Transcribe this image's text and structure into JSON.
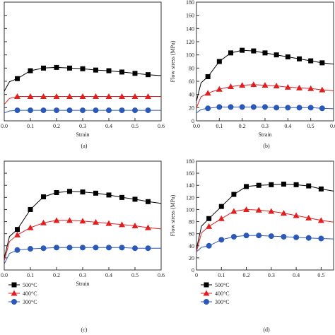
{
  "chart_data": [
    {
      "panel": "(a)",
      "type": "line",
      "xlabel": "Strain",
      "ylabel": "",
      "xlim": [
        0,
        0.6
      ],
      "ylim": [
        0,
        180
      ],
      "xticks": [
        "0.0",
        "0.1",
        "0.2",
        "0.3",
        "0.4",
        "0.5",
        "0.6"
      ],
      "yticks": [],
      "x": [
        0.05,
        0.1,
        0.15,
        0.2,
        0.25,
        0.3,
        0.35,
        0.4,
        0.45,
        0.5,
        0.55
      ],
      "series": [
        {
          "name": "500°C",
          "color": "#000000",
          "marker": "square",
          "start": 45,
          "values": [
            64,
            76,
            80,
            81,
            80,
            79,
            77,
            76,
            74,
            72,
            70
          ]
        },
        {
          "name": "400°C",
          "color": "#e02020",
          "marker": "triangle",
          "start": 25,
          "values": [
            37,
            37,
            37,
            37,
            37,
            37,
            37,
            37,
            37,
            37,
            37
          ]
        },
        {
          "name": "300°C",
          "color": "#2c59b8",
          "marker": "circle",
          "start": 12,
          "values": [
            16,
            16,
            16,
            16,
            16,
            16,
            16,
            16,
            16,
            16,
            16
          ]
        }
      ]
    },
    {
      "panel": "(b)",
      "type": "line",
      "xlabel": "Strain",
      "ylabel": "Flow stress (MPa)",
      "xlim": [
        0,
        0.6
      ],
      "ylim": [
        0,
        180
      ],
      "xticks": [
        "0.0",
        "0.1",
        "0.2",
        "0.3",
        "0.4",
        "0.5",
        "0.6"
      ],
      "yticks": [
        "0",
        "20",
        "40",
        "60",
        "80",
        "100",
        "120",
        "140",
        "160",
        "180"
      ],
      "x": [
        0.05,
        0.1,
        0.15,
        0.2,
        0.25,
        0.3,
        0.35,
        0.4,
        0.45,
        0.5,
        0.55
      ],
      "series": [
        {
          "name": "500°C",
          "color": "#000000",
          "marker": "square",
          "start": 30,
          "values": [
            67,
            90,
            103,
            107,
            106,
            103,
            100,
            97,
            94,
            91,
            88
          ]
        },
        {
          "name": "400°C",
          "color": "#e02020",
          "marker": "triangle",
          "start": 20,
          "values": [
            42,
            48,
            52,
            54,
            55,
            54,
            53,
            51,
            50,
            49,
            47
          ]
        },
        {
          "name": "300°C",
          "color": "#2c59b8",
          "marker": "circle",
          "start": 12,
          "values": [
            19,
            21,
            21,
            21,
            21,
            21,
            20,
            20,
            20,
            20,
            19
          ]
        }
      ]
    },
    {
      "panel": "(c)",
      "type": "line",
      "xlabel": "Strain",
      "ylabel": "",
      "xlim": [
        0,
        0.6
      ],
      "ylim": [
        0,
        180
      ],
      "xticks": [
        "0.0",
        "0.1",
        "0.2",
        "0.3",
        "0.4",
        "0.5",
        "0.6"
      ],
      "yticks": [],
      "x": [
        0.05,
        0.1,
        0.15,
        0.2,
        0.25,
        0.3,
        0.35,
        0.4,
        0.45,
        0.5,
        0.55
      ],
      "series": [
        {
          "name": "500°C",
          "color": "#000000",
          "marker": "square",
          "start": 20,
          "values": [
            67,
            100,
            121,
            128,
            130,
            129,
            127,
            124,
            120,
            117,
            113
          ]
        },
        {
          "name": "400°C",
          "color": "#e02020",
          "marker": "triangle",
          "start": 15,
          "values": [
            58,
            70,
            78,
            82,
            82,
            81,
            79,
            77,
            75,
            73,
            70
          ]
        },
        {
          "name": "300°C",
          "color": "#2c59b8",
          "marker": "circle",
          "start": 10,
          "values": [
            33,
            35,
            36,
            37,
            37,
            37,
            37,
            37,
            37,
            36,
            36
          ]
        }
      ]
    },
    {
      "panel": "(d)",
      "type": "line",
      "xlabel": "",
      "ylabel": "Flow stress (MPa)",
      "xlim": [
        0,
        0.55
      ],
      "ylim": [
        0,
        180
      ],
      "xticks": [
        "0",
        "0.1",
        "0.2",
        "0.3",
        "0.4",
        "0.5"
      ],
      "yticks": [
        "0",
        "20",
        "40",
        "60",
        "80",
        "100",
        "120",
        "140",
        "160",
        "180"
      ],
      "x": [
        0.05,
        0.1,
        0.15,
        0.2,
        0.25,
        0.3,
        0.35,
        0.4,
        0.45,
        0.5
      ],
      "series": [
        {
          "name": "500°C",
          "color": "#000000",
          "marker": "square",
          "start": 35,
          "values": [
            85,
            105,
            125,
            138,
            140,
            141,
            142,
            141,
            139,
            134
          ]
        },
        {
          "name": "400°C",
          "color": "#e02020",
          "marker": "triangle",
          "start": 30,
          "values": [
            72,
            85,
            97,
            100,
            99,
            97,
            94,
            90,
            86,
            82
          ]
        },
        {
          "name": "300°C",
          "color": "#2c59b8",
          "marker": "circle",
          "start": 30,
          "values": [
            40,
            50,
            55,
            57,
            57,
            56,
            55,
            54,
            53,
            52
          ]
        }
      ]
    }
  ],
  "legends": [
    {
      "entries": [
        {
          "label": "500°C",
          "marker": "square",
          "color": "#000000"
        },
        {
          "label": "400°C",
          "marker": "triangle",
          "color": "#e02020"
        },
        {
          "label": "300°C",
          "marker": "circle",
          "color": "#2c59b8"
        }
      ]
    },
    {
      "entries": [
        {
          "label": "500°C",
          "marker": "square",
          "color": "#000000"
        },
        {
          "label": "400°C",
          "marker": "triangle",
          "color": "#e02020"
        },
        {
          "label": "300°C",
          "marker": "circle",
          "color": "#2c59b8"
        }
      ]
    }
  ]
}
